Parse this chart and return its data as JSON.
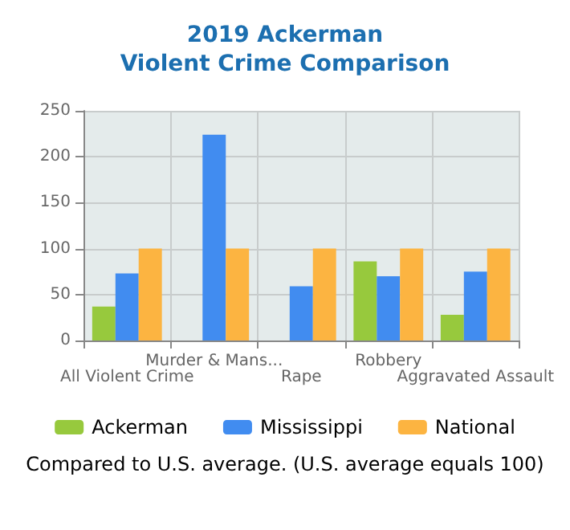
{
  "chart_data": {
    "type": "bar",
    "title": "2019 Ackerman",
    "subtitle": "Violent Crime Comparison",
    "categories": [
      "All Violent Crime",
      "Murder & Mans...",
      "Rape",
      "Robbery",
      "Aggravated Assault"
    ],
    "series": [
      {
        "name": "Ackerman",
        "color": "#97c93d",
        "values": [
          37,
          0,
          0,
          86,
          28
        ]
      },
      {
        "name": "Mississippi",
        "color": "#418cf0",
        "values": [
          73,
          224,
          59,
          70,
          75
        ]
      },
      {
        "name": "National",
        "color": "#fcb441",
        "values": [
          100,
          100,
          100,
          100,
          100
        ]
      }
    ],
    "ylim": [
      0,
      250
    ],
    "yticks": [
      0,
      50,
      100,
      150,
      200,
      250
    ],
    "grid": true,
    "legend": "bottom",
    "annotations": [
      "Compared to U.S. average. (U.S. average equals 100)"
    ]
  }
}
